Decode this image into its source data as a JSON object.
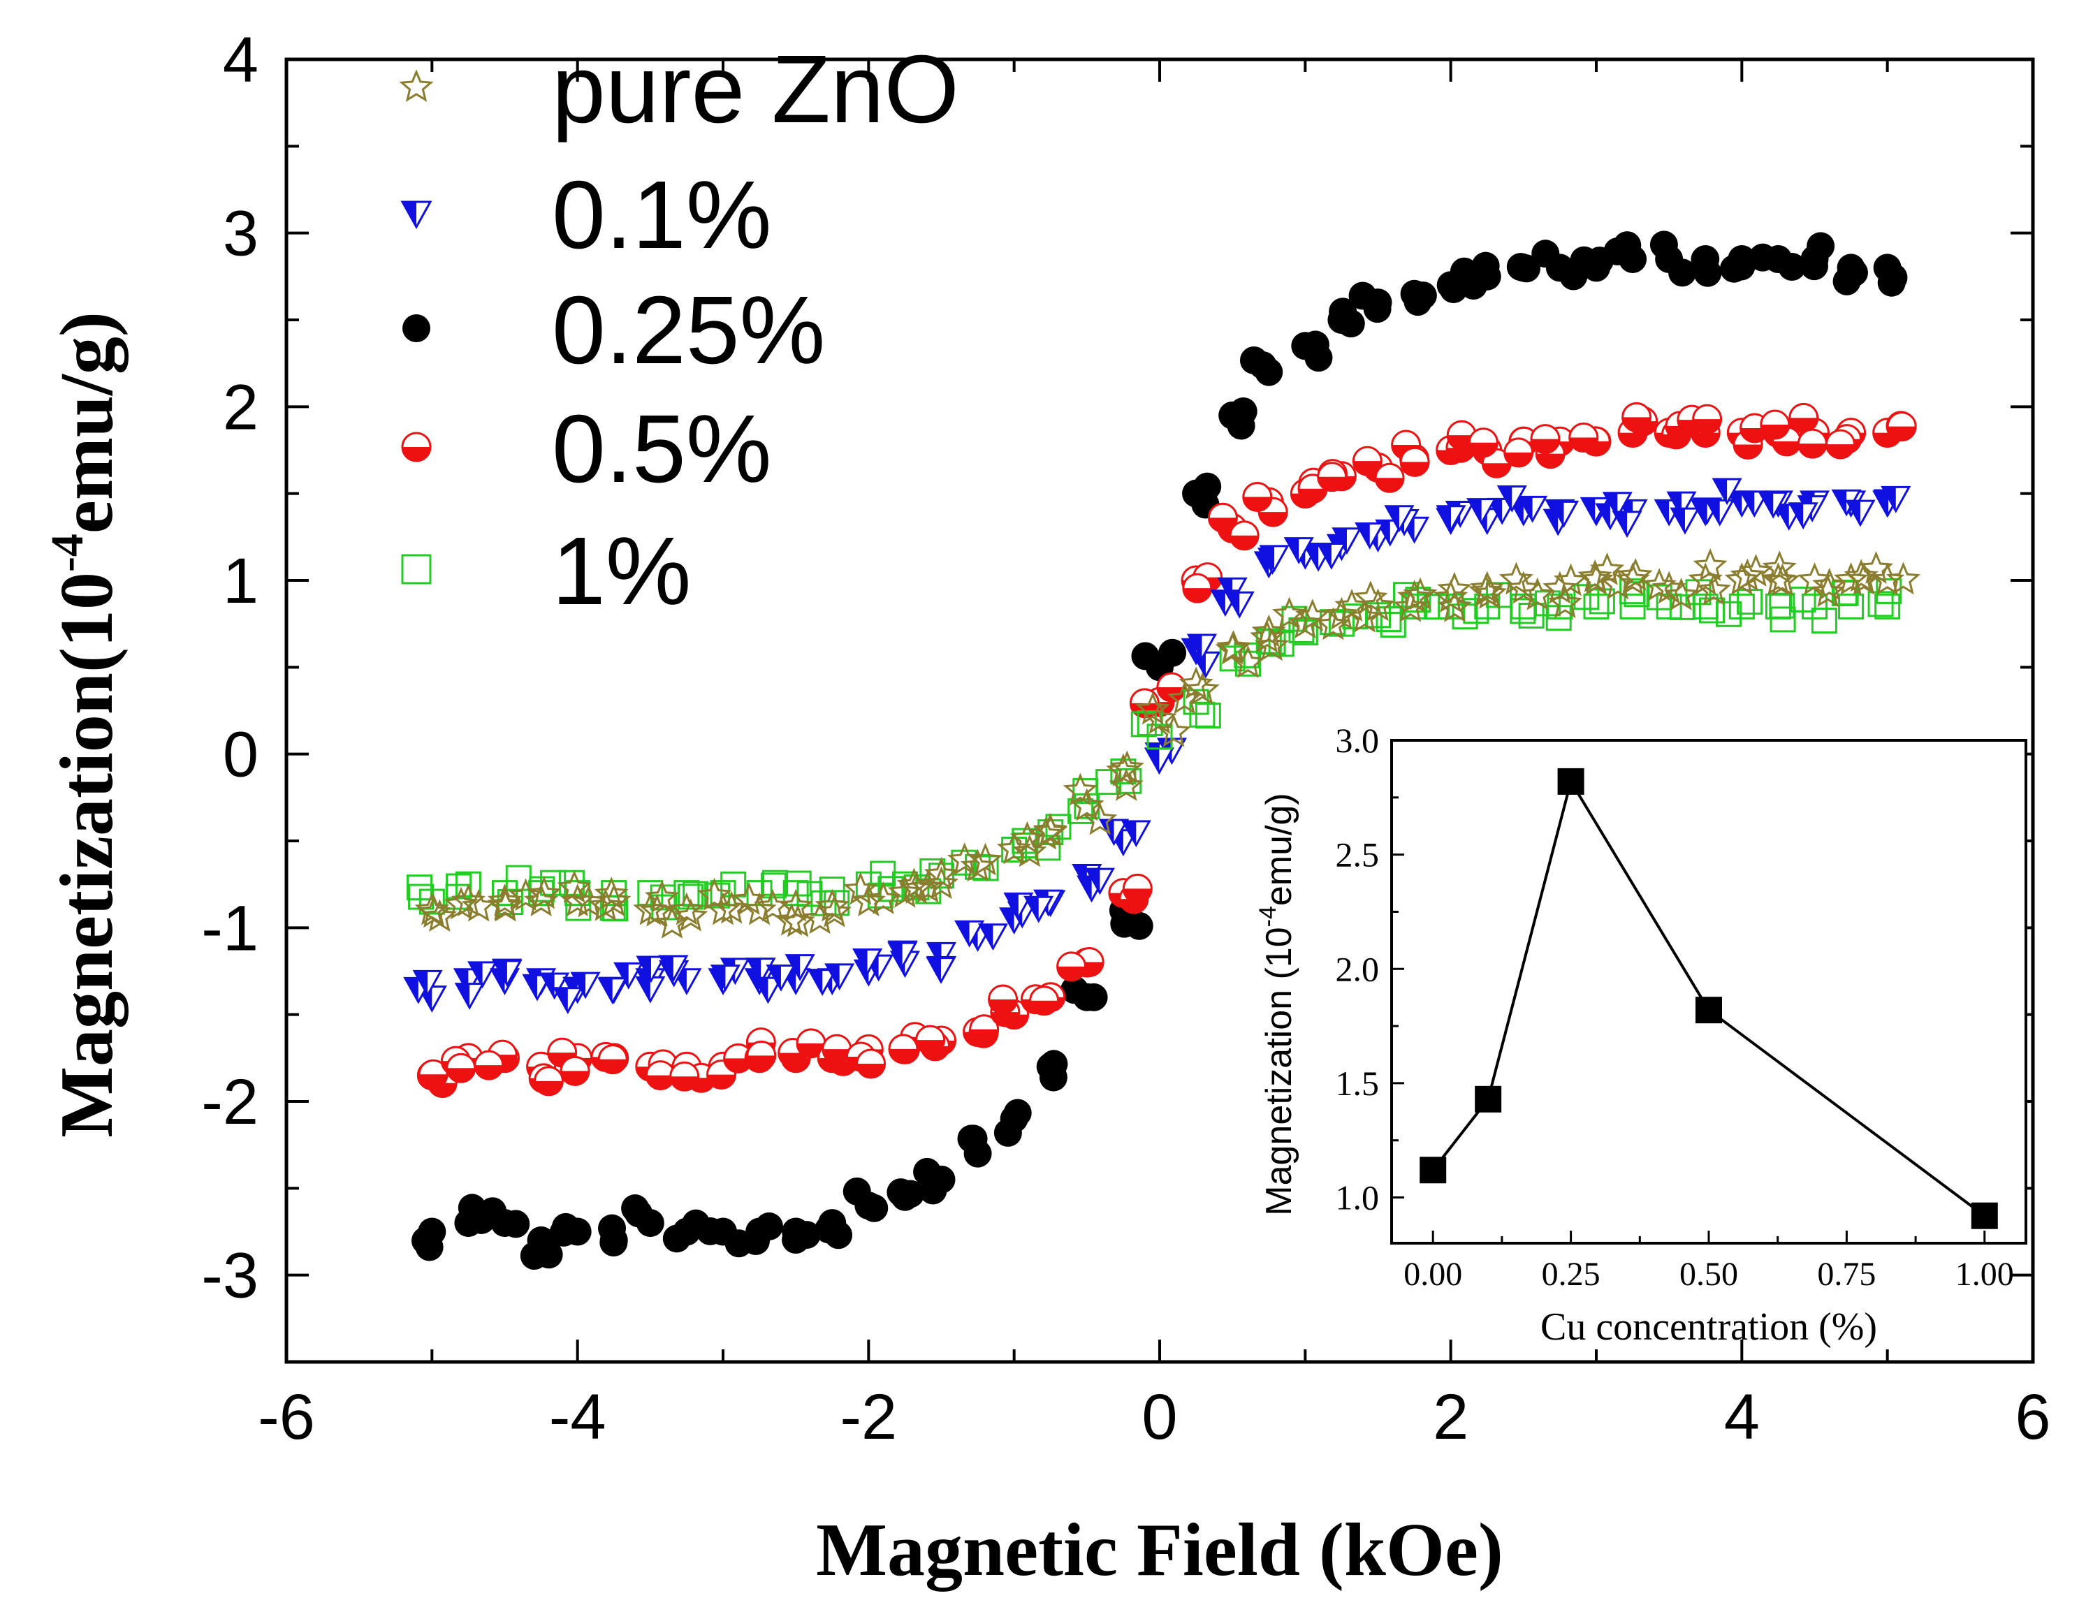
{
  "chart_data": [
    {
      "type": "scatter",
      "title": "",
      "xlabel": "Magnetic Field (kOe)",
      "ylabel": {
        "main": "Magnetization(10",
        "sup": "-4",
        "tail": "emu/g)"
      },
      "xlim": [
        -6,
        6
      ],
      "ylim": [
        -3.5,
        4
      ],
      "xticks": [
        -6,
        -4,
        -2,
        0,
        2,
        4,
        6
      ],
      "yticks": [
        -3,
        -2,
        -1,
        0,
        1,
        2,
        3,
        4
      ],
      "xtick_labels": [
        "-6",
        "-4",
        "-2",
        "0",
        "2",
        "4",
        "6"
      ],
      "ytick_labels": [
        "-3",
        "-2",
        "-1",
        "0",
        "1",
        "2",
        "3",
        "4"
      ],
      "legend_position": "top-left",
      "series": [
        {
          "name": "pure ZnO",
          "marker": "star-open",
          "color": "#8B7D2E",
          "x": [
            -5.0,
            -4.75,
            -4.5,
            -4.25,
            -4.0,
            -3.75,
            -3.5,
            -3.25,
            -3.0,
            -2.75,
            -2.5,
            -2.25,
            -2.0,
            -1.75,
            -1.5,
            -1.25,
            -1.0,
            -0.75,
            -0.5,
            -0.25,
            0.0,
            0.25,
            0.5,
            0.75,
            1.0,
            1.25,
            1.5,
            1.75,
            2.0,
            2.25,
            2.5,
            2.75,
            3.0,
            3.25,
            3.5,
            3.75,
            4.0,
            4.25,
            4.5,
            4.75,
            5.0
          ],
          "y": [
            -0.9,
            -0.85,
            -0.85,
            -0.85,
            -0.85,
            -0.85,
            -0.9,
            -0.9,
            -0.9,
            -0.9,
            -0.88,
            -0.88,
            -0.85,
            -0.8,
            -0.75,
            -0.65,
            -0.55,
            -0.45,
            -0.3,
            -0.1,
            0.2,
            0.4,
            0.6,
            0.7,
            0.75,
            0.8,
            0.85,
            0.9,
            0.9,
            0.95,
            0.95,
            0.95,
            1.0,
            1.0,
            0.95,
            1.0,
            1.0,
            1.0,
            1.0,
            1.0,
            1.0
          ]
        },
        {
          "name": "0.1%",
          "marker": "triangle-down-half",
          "color": "#1010E0",
          "x": [
            -5.0,
            -4.75,
            -4.5,
            -4.25,
            -4.0,
            -3.75,
            -3.5,
            -3.25,
            -3.0,
            -2.75,
            -2.5,
            -2.25,
            -2.0,
            -1.75,
            -1.5,
            -1.25,
            -1.0,
            -0.75,
            -0.5,
            -0.25,
            0.0,
            0.25,
            0.5,
            0.75,
            1.0,
            1.25,
            1.5,
            1.75,
            2.0,
            2.25,
            2.5,
            2.75,
            3.0,
            3.25,
            3.5,
            3.75,
            4.0,
            4.25,
            4.5,
            4.75,
            5.0
          ],
          "y": [
            -1.4,
            -1.3,
            -1.3,
            -1.3,
            -1.35,
            -1.35,
            -1.3,
            -1.3,
            -1.3,
            -1.3,
            -1.3,
            -1.3,
            -1.25,
            -1.2,
            -1.15,
            -1.05,
            -0.95,
            -0.85,
            -0.7,
            -0.5,
            0.0,
            0.6,
            0.95,
            1.1,
            1.15,
            1.2,
            1.25,
            1.3,
            1.35,
            1.35,
            1.4,
            1.4,
            1.4,
            1.4,
            1.4,
            1.4,
            1.45,
            1.45,
            1.45,
            1.45,
            1.45
          ]
        },
        {
          "name": "0.25%",
          "marker": "circle-filled",
          "color": "#000000",
          "x": [
            -5.0,
            -4.75,
            -4.5,
            -4.25,
            -4.0,
            -3.75,
            -3.5,
            -3.25,
            -3.0,
            -2.75,
            -2.5,
            -2.25,
            -2.0,
            -1.75,
            -1.5,
            -1.25,
            -1.0,
            -0.75,
            -0.5,
            -0.25,
            0.0,
            0.25,
            0.5,
            0.75,
            1.0,
            1.25,
            1.5,
            1.75,
            2.0,
            2.25,
            2.5,
            2.75,
            3.0,
            3.25,
            3.5,
            3.75,
            4.0,
            4.25,
            4.5,
            4.75,
            5.0
          ],
          "y": [
            -2.75,
            -2.7,
            -2.7,
            -2.8,
            -2.75,
            -2.8,
            -2.7,
            -2.75,
            -2.75,
            -2.75,
            -2.75,
            -2.7,
            -2.6,
            -2.55,
            -2.45,
            -2.3,
            -2.1,
            -1.8,
            -1.4,
            -0.9,
            0.5,
            1.5,
            1.95,
            2.2,
            2.35,
            2.5,
            2.6,
            2.65,
            2.7,
            2.75,
            2.8,
            2.8,
            2.8,
            2.85,
            2.85,
            2.85,
            2.85,
            2.85,
            2.85,
            2.8,
            2.8
          ]
        },
        {
          "name": "0.5%",
          "marker": "circle-half",
          "color": "#EE1111",
          "x": [
            -5.0,
            -4.75,
            -4.5,
            -4.25,
            -4.0,
            -3.75,
            -3.5,
            -3.25,
            -3.0,
            -2.75,
            -2.5,
            -2.25,
            -2.0,
            -1.75,
            -1.5,
            -1.25,
            -1.0,
            -0.75,
            -0.5,
            -0.25,
            0.0,
            0.25,
            0.5,
            0.75,
            1.0,
            1.25,
            1.5,
            1.75,
            2.0,
            2.25,
            2.5,
            2.75,
            3.0,
            3.25,
            3.5,
            3.75,
            4.0,
            4.25,
            4.5,
            4.75,
            5.0
          ],
          "y": [
            -1.85,
            -1.75,
            -1.75,
            -1.8,
            -1.75,
            -1.75,
            -1.8,
            -1.8,
            -1.8,
            -1.75,
            -1.75,
            -1.75,
            -1.7,
            -1.7,
            -1.65,
            -1.6,
            -1.5,
            -1.4,
            -1.2,
            -0.8,
            0.3,
            1.0,
            1.3,
            1.45,
            1.5,
            1.6,
            1.65,
            1.7,
            1.75,
            1.75,
            1.8,
            1.8,
            1.8,
            1.85,
            1.85,
            1.85,
            1.85,
            1.85,
            1.85,
            1.85,
            1.85
          ]
        },
        {
          "name": "1%",
          "marker": "square-open",
          "color": "#22CC22",
          "x": [
            -5.0,
            -4.75,
            -4.5,
            -4.25,
            -4.0,
            -3.75,
            -3.5,
            -3.25,
            -3.0,
            -2.75,
            -2.5,
            -2.25,
            -2.0,
            -1.75,
            -1.5,
            -1.25,
            -1.0,
            -0.75,
            -0.5,
            -0.25,
            0.0,
            0.25,
            0.5,
            0.75,
            1.0,
            1.25,
            1.5,
            1.75,
            2.0,
            2.25,
            2.5,
            2.75,
            3.0,
            3.25,
            3.5,
            3.75,
            4.0,
            4.25,
            4.5,
            4.75,
            5.0
          ],
          "y": [
            -0.85,
            -0.75,
            -0.8,
            -0.8,
            -0.8,
            -0.8,
            -0.8,
            -0.8,
            -0.8,
            -0.8,
            -0.8,
            -0.78,
            -0.75,
            -0.75,
            -0.7,
            -0.65,
            -0.55,
            -0.45,
            -0.3,
            -0.1,
            0.1,
            0.3,
            0.55,
            0.65,
            0.7,
            0.75,
            0.8,
            0.85,
            0.85,
            0.85,
            0.85,
            0.85,
            0.85,
            0.85,
            0.85,
            0.85,
            0.85,
            0.85,
            0.85,
            0.85,
            0.85
          ]
        }
      ]
    },
    {
      "type": "line",
      "title": "",
      "xlabel": "Cu concentration (%)",
      "ylabel": {
        "main": "Magnetization  (10",
        "sup": "-4",
        "tail": "emu/g)"
      },
      "xlim": [
        -0.075,
        1.075
      ],
      "ylim": [
        0.8,
        3.0
      ],
      "xticks": [
        0.0,
        0.25,
        0.5,
        0.75,
        1.0
      ],
      "yticks": [
        1.0,
        1.5,
        2.0,
        2.5,
        3.0
      ],
      "xtick_labels": [
        "0.00",
        "0.25",
        "0.50",
        "0.75",
        "1.00"
      ],
      "ytick_labels": [
        "1.0",
        "1.5",
        "2.0",
        "2.5",
        "3.0"
      ],
      "marker": "square-filled",
      "x": [
        0.0,
        0.1,
        0.25,
        0.5,
        1.0
      ],
      "y": [
        1.12,
        1.43,
        2.82,
        1.82,
        0.92
      ]
    }
  ]
}
